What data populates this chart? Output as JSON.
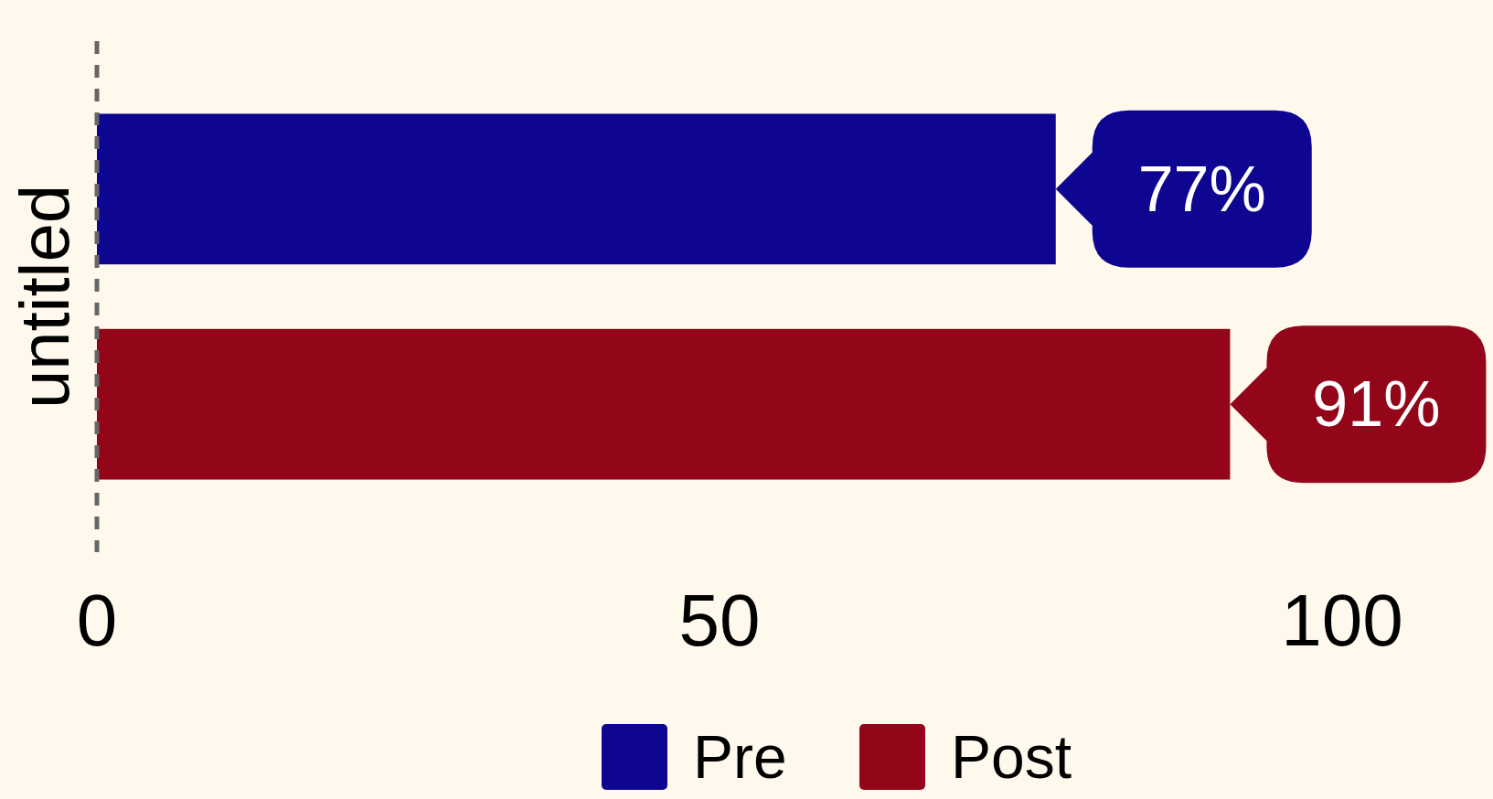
{
  "chart_data": {
    "type": "bar",
    "orientation": "horizontal",
    "ylabel": "untitled",
    "categories": [
      null
    ],
    "series": [
      {
        "name": "Pre",
        "color": "#0e0590",
        "values": [
          77
        ],
        "value_labels": [
          "77%"
        ]
      },
      {
        "name": "Post",
        "color": "#93061a",
        "values": [
          91
        ],
        "value_labels": [
          "91%"
        ]
      }
    ],
    "xlim": [
      0,
      100
    ],
    "xticks": [
      0,
      50,
      100
    ],
    "grid": false,
    "legend": "bottom",
    "ref_lines": [
      {
        "axis": "x",
        "value": 0,
        "color": "#666666",
        "line_style": "dashed"
      }
    ]
  }
}
